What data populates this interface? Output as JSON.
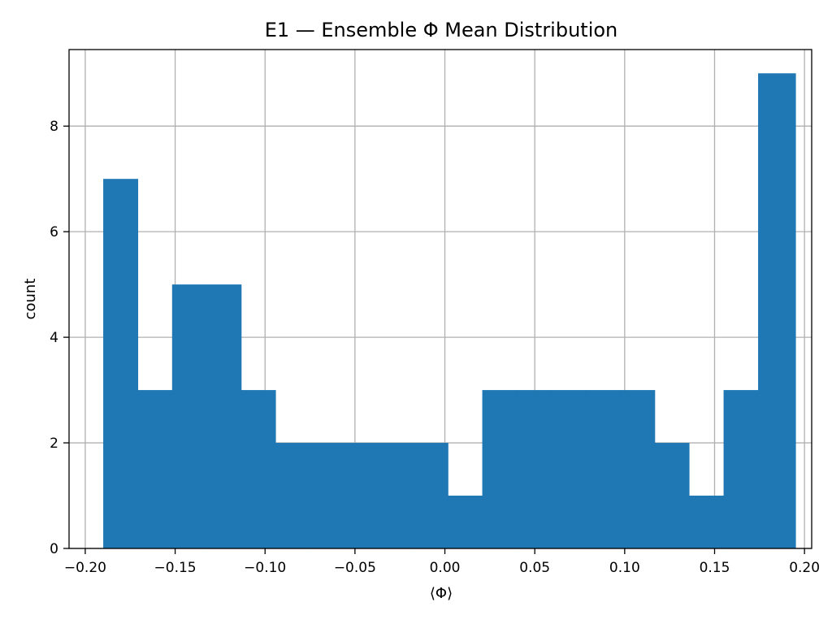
{
  "chart_data": {
    "type": "bar",
    "title": "E1 — Ensemble Φ Mean Distribution",
    "xlabel": "⟨Φ⟩",
    "ylabel": "count",
    "xlim": [
      -0.209,
      0.204
    ],
    "ylim": [
      0,
      9.45
    ],
    "grid": true,
    "color": "#1f77b4",
    "bin_edges": [
      -0.19,
      -0.1708,
      -0.1517,
      -0.1325,
      -0.1133,
      -0.0942,
      -0.075,
      -0.0558,
      -0.0367,
      -0.0175,
      0.0017,
      0.0208,
      0.04,
      0.0592,
      0.0783,
      0.0975,
      0.1167,
      0.1358,
      0.155,
      0.1742,
      0.195
    ],
    "counts": [
      7,
      3,
      5,
      5,
      3,
      2,
      2,
      2,
      2,
      2,
      1,
      3,
      3,
      3,
      3,
      3,
      2,
      1,
      3,
      9
    ],
    "x_ticks": [
      {
        "value": -0.2,
        "label": "−0.20"
      },
      {
        "value": -0.15,
        "label": "−0.15"
      },
      {
        "value": -0.1,
        "label": "−0.10"
      },
      {
        "value": -0.05,
        "label": "−0.05"
      },
      {
        "value": 0.0,
        "label": "0.00"
      },
      {
        "value": 0.05,
        "label": "0.05"
      },
      {
        "value": 0.1,
        "label": "0.10"
      },
      {
        "value": 0.15,
        "label": "0.15"
      },
      {
        "value": 0.2,
        "label": "0.20"
      }
    ],
    "y_ticks": [
      {
        "value": 0,
        "label": "0"
      },
      {
        "value": 2,
        "label": "2"
      },
      {
        "value": 4,
        "label": "4"
      },
      {
        "value": 6,
        "label": "6"
      },
      {
        "value": 8,
        "label": "8"
      }
    ]
  }
}
